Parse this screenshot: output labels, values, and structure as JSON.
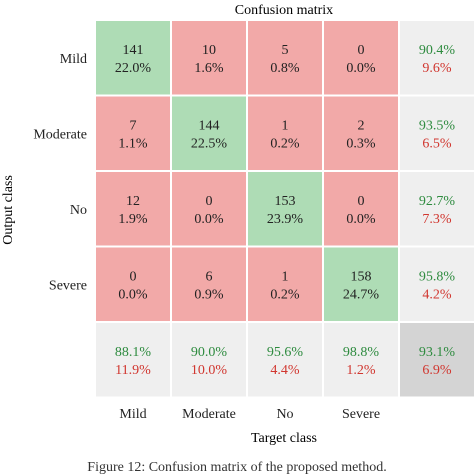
{
  "chart_data": {
    "type": "heatmap",
    "title": "Confusion matrix",
    "xlabel": "Target class",
    "ylabel": "Output class",
    "classes": [
      "Mild",
      "Moderate",
      "No",
      "Severe"
    ],
    "counts": [
      [
        141,
        10,
        5,
        0
      ],
      [
        7,
        144,
        1,
        2
      ],
      [
        12,
        0,
        153,
        0
      ],
      [
        0,
        6,
        1,
        158
      ]
    ],
    "percentages": [
      [
        "22.0%",
        "1.6%",
        "0.8%",
        "0.0%"
      ],
      [
        "1.1%",
        "22.5%",
        "0.2%",
        "0.3%"
      ],
      [
        "1.9%",
        "0.0%",
        "23.9%",
        "0.0%"
      ],
      [
        "0.0%",
        "0.9%",
        "0.2%",
        "24.7%"
      ]
    ],
    "row_summary": [
      [
        "90.4%",
        "9.6%"
      ],
      [
        "93.5%",
        "6.5%"
      ],
      [
        "92.7%",
        "7.3%"
      ],
      [
        "95.8%",
        "4.2%"
      ]
    ],
    "col_summary": [
      [
        "88.1%",
        "11.9%"
      ],
      [
        "90.0%",
        "10.0%"
      ],
      [
        "95.6%",
        "4.4%"
      ],
      [
        "98.8%",
        "1.2%"
      ]
    ],
    "overall": [
      "93.1%",
      "6.9%"
    ]
  },
  "colors": {
    "correct_cell": "#aedcb5",
    "error_cell": "#f2a9a8",
    "summary_cell": "#efefef",
    "overall_cell": "#d4d4d4",
    "good_text": "#2e8b3f",
    "bad_text": "#d1362f",
    "text": "#222222"
  },
  "caption": "Figure 12: Confusion matrix of the proposed method."
}
